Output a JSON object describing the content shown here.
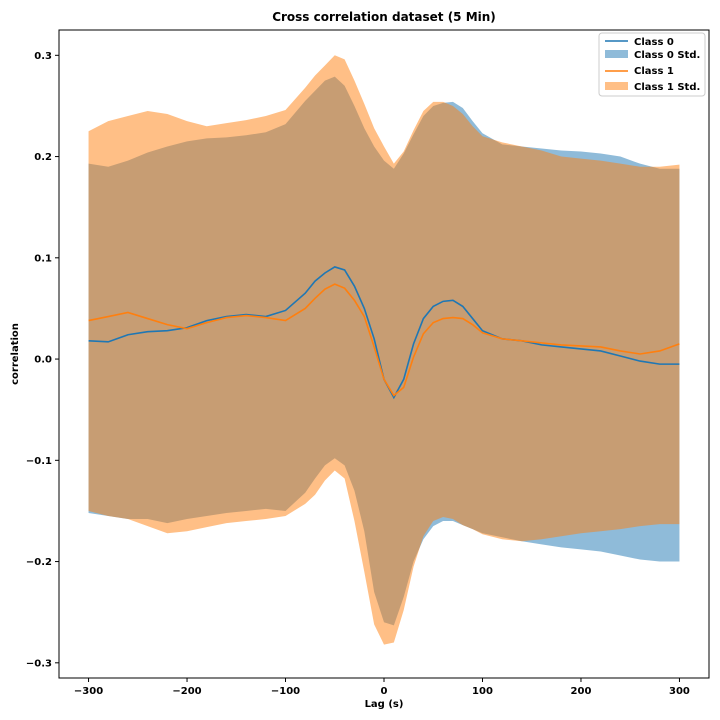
{
  "chart_data": {
    "type": "area",
    "title": "Cross correlation dataset (5 Min)",
    "xlabel": "Lag (s)",
    "ylabel": "correlation",
    "xlim": [
      -330,
      330
    ],
    "ylim": [
      -0.315,
      0.325
    ],
    "xticks": [
      -300,
      -200,
      -100,
      0,
      100,
      200,
      300
    ],
    "yticks": [
      -0.3,
      -0.2,
      -0.1,
      0.0,
      0.1,
      0.2,
      0.3
    ],
    "xtick_labels": [
      "−300",
      "−200",
      "−100",
      "0",
      "100",
      "200",
      "300"
    ],
    "ytick_labels": [
      "−0.3",
      "−0.2",
      "−0.1",
      "0.0",
      "0.1",
      "0.2",
      "0.3"
    ],
    "grid": false,
    "legend_position": "top-right",
    "x": [
      -300,
      -280,
      -260,
      -240,
      -220,
      -200,
      -180,
      -160,
      -140,
      -120,
      -100,
      -80,
      -70,
      -60,
      -50,
      -40,
      -30,
      -20,
      -10,
      0,
      10,
      20,
      30,
      40,
      50,
      60,
      70,
      80,
      90,
      100,
      120,
      140,
      160,
      180,
      200,
      220,
      240,
      260,
      280,
      300
    ],
    "series": [
      {
        "name": "Class 0",
        "color": "#1f77b4",
        "mean": [
          0.018,
          0.017,
          0.024,
          0.027,
          0.028,
          0.031,
          0.038,
          0.042,
          0.044,
          0.042,
          0.048,
          0.065,
          0.077,
          0.085,
          0.091,
          0.088,
          0.072,
          0.05,
          0.02,
          -0.02,
          -0.038,
          -0.02,
          0.015,
          0.04,
          0.052,
          0.057,
          0.058,
          0.052,
          0.04,
          0.028,
          0.02,
          0.018,
          0.014,
          0.012,
          0.01,
          0.008,
          0.003,
          -0.002,
          -0.005,
          -0.005
        ],
        "upper": [
          0.193,
          0.19,
          0.196,
          0.204,
          0.21,
          0.215,
          0.218,
          0.219,
          0.221,
          0.224,
          0.232,
          0.255,
          0.265,
          0.275,
          0.279,
          0.27,
          0.25,
          0.228,
          0.21,
          0.196,
          0.188,
          0.203,
          0.222,
          0.24,
          0.25,
          0.253,
          0.254,
          0.248,
          0.235,
          0.223,
          0.212,
          0.21,
          0.208,
          0.206,
          0.205,
          0.203,
          0.2,
          0.193,
          0.188,
          0.188
        ],
        "lower": [
          -0.152,
          -0.155,
          -0.158,
          -0.158,
          -0.162,
          -0.158,
          -0.155,
          -0.152,
          -0.15,
          -0.148,
          -0.15,
          -0.132,
          -0.118,
          -0.105,
          -0.098,
          -0.105,
          -0.13,
          -0.17,
          -0.23,
          -0.26,
          -0.263,
          -0.235,
          -0.2,
          -0.178,
          -0.165,
          -0.16,
          -0.16,
          -0.164,
          -0.168,
          -0.172,
          -0.176,
          -0.18,
          -0.183,
          -0.186,
          -0.188,
          -0.19,
          -0.194,
          -0.198,
          -0.2,
          -0.2
        ]
      },
      {
        "name": "Class 1",
        "color": "#ff7f0e",
        "mean": [
          0.038,
          0.042,
          0.046,
          0.04,
          0.034,
          0.03,
          0.036,
          0.041,
          0.043,
          0.041,
          0.038,
          0.05,
          0.06,
          0.069,
          0.074,
          0.07,
          0.058,
          0.042,
          0.012,
          -0.02,
          -0.036,
          -0.028,
          0.002,
          0.025,
          0.036,
          0.04,
          0.041,
          0.04,
          0.034,
          0.026,
          0.02,
          0.018,
          0.016,
          0.014,
          0.013,
          0.012,
          0.008,
          0.005,
          0.008,
          0.015
        ],
        "upper": [
          0.225,
          0.235,
          0.24,
          0.245,
          0.242,
          0.235,
          0.23,
          0.233,
          0.236,
          0.24,
          0.246,
          0.268,
          0.28,
          0.29,
          0.3,
          0.296,
          0.275,
          0.252,
          0.228,
          0.21,
          0.193,
          0.205,
          0.226,
          0.245,
          0.254,
          0.254,
          0.25,
          0.242,
          0.23,
          0.22,
          0.214,
          0.21,
          0.206,
          0.2,
          0.198,
          0.196,
          0.193,
          0.19,
          0.19,
          0.192
        ],
        "lower": [
          -0.15,
          -0.155,
          -0.158,
          -0.165,
          -0.172,
          -0.17,
          -0.166,
          -0.162,
          -0.16,
          -0.158,
          -0.155,
          -0.143,
          -0.134,
          -0.12,
          -0.11,
          -0.118,
          -0.16,
          -0.21,
          -0.262,
          -0.282,
          -0.28,
          -0.248,
          -0.205,
          -0.175,
          -0.16,
          -0.156,
          -0.158,
          -0.164,
          -0.168,
          -0.173,
          -0.178,
          -0.18,
          -0.178,
          -0.175,
          -0.172,
          -0.17,
          -0.168,
          -0.165,
          -0.163,
          -0.163
        ]
      }
    ],
    "legend_entries": [
      "Class 0",
      "Class 0 Std.",
      "Class 1",
      "Class 1 Std."
    ]
  }
}
